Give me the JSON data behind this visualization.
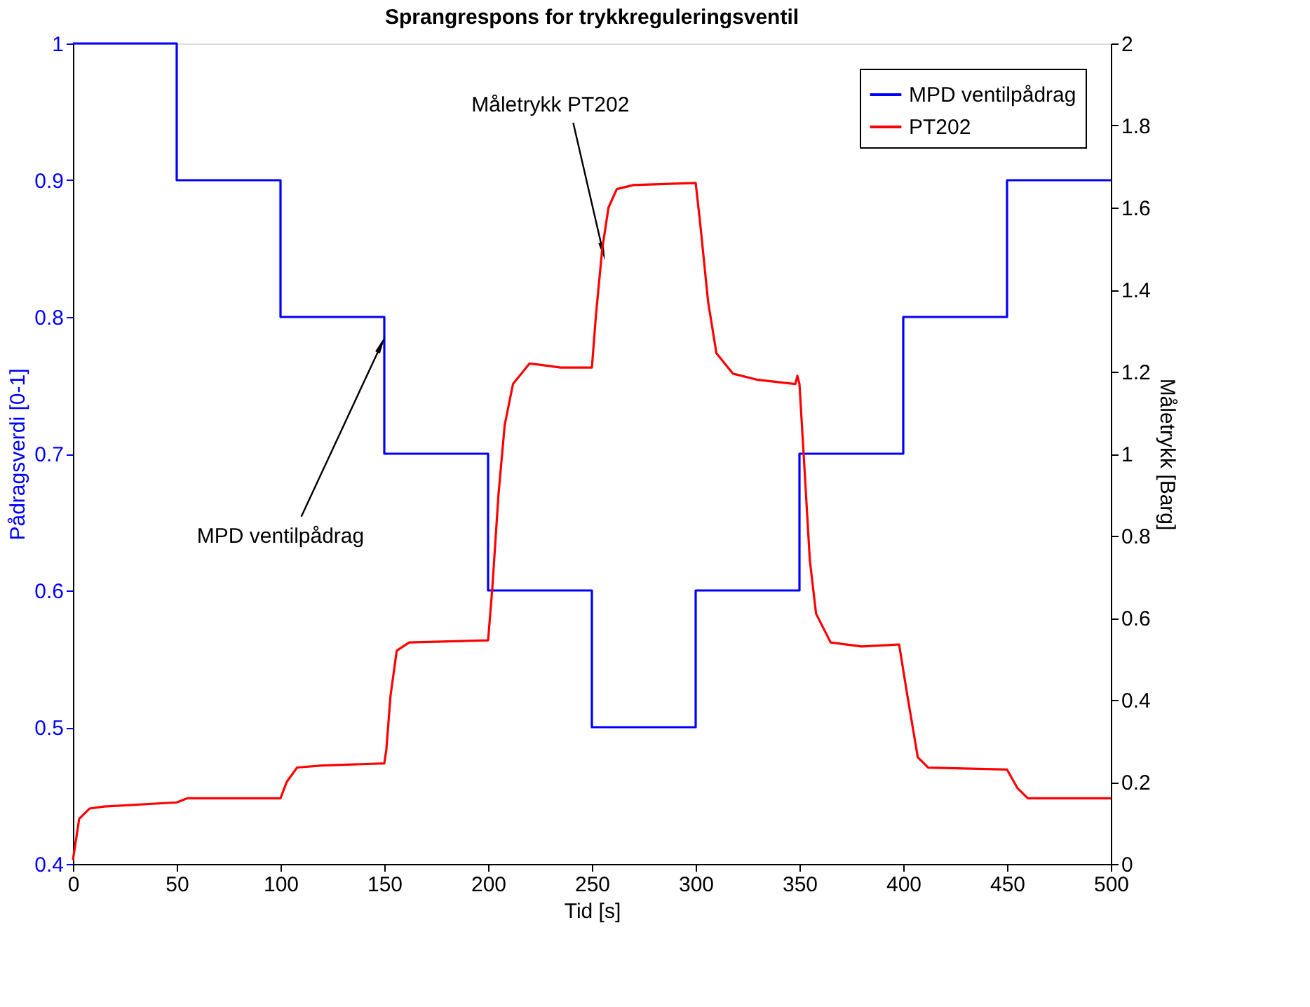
{
  "chart_data": {
    "type": "line",
    "title": "Sprangrespons for trykkreguleringsventil",
    "xlabel": "Tid [s]",
    "ylabel": "Pådragsverdi [0-1]",
    "y2label": "Måletrykk [Barg]",
    "xlim": [
      0,
      500
    ],
    "xticks": [
      0,
      50,
      100,
      150,
      200,
      250,
      300,
      350,
      400,
      450,
      500
    ],
    "ylim": [
      0.4,
      1
    ],
    "yticks": [
      0.4,
      0.5,
      0.6,
      0.7,
      0.8,
      0.9,
      1
    ],
    "y2lim": [
      0,
      2
    ],
    "y2ticks": [
      0,
      0.2,
      0.4,
      0.6,
      0.8,
      1,
      1.2,
      1.4,
      1.6,
      1.8,
      2
    ],
    "grid": false,
    "legend": "top right",
    "line_style": "solid",
    "marker": "none",
    "series": [
      {
        "name": "MPD ventilpådrag",
        "type": "step",
        "color": "#0000ff",
        "x": [
          0,
          50,
          100,
          150,
          200,
          250,
          300,
          350,
          400,
          450,
          500
        ],
        "values": [
          1,
          0.9,
          0.8,
          0.7,
          0.6,
          0.5,
          0.6,
          0.7,
          0.8,
          0.9,
          0.9
        ]
      },
      {
        "name": "PT202",
        "type": "line",
        "axis": "y2",
        "color": "#ff0000",
        "x": [
          0,
          3,
          8,
          15,
          50,
          55,
          100,
          103,
          108,
          120,
          150,
          151,
          153,
          156,
          162,
          200,
          202,
          205,
          208,
          212,
          220,
          235,
          250,
          252,
          255,
          258,
          262,
          270,
          300,
          302,
          306,
          310,
          318,
          330,
          348,
          349,
          350,
          352,
          355,
          358,
          365,
          380,
          398,
          402,
          407,
          412,
          450,
          455,
          460,
          500
        ],
        "values": [
          0.01,
          0.11,
          0.135,
          0.14,
          0.15,
          0.16,
          0.16,
          0.2,
          0.235,
          0.24,
          0.245,
          0.28,
          0.41,
          0.52,
          0.54,
          0.545,
          0.67,
          0.9,
          1.07,
          1.17,
          1.22,
          1.21,
          1.21,
          1.34,
          1.5,
          1.6,
          1.645,
          1.655,
          1.66,
          1.57,
          1.37,
          1.245,
          1.195,
          1.18,
          1.17,
          1.19,
          1.17,
          1.0,
          0.74,
          0.61,
          0.54,
          0.53,
          0.535,
          0.41,
          0.26,
          0.235,
          0.23,
          0.185,
          0.16,
          0.16
        ]
      }
    ],
    "annotations": [
      {
        "text": "MPD ventilpådrag",
        "x": 148,
        "y": 0.778
      },
      {
        "text": "Måletrykk PT202",
        "x": 255,
        "y": 0.85
      }
    ]
  }
}
